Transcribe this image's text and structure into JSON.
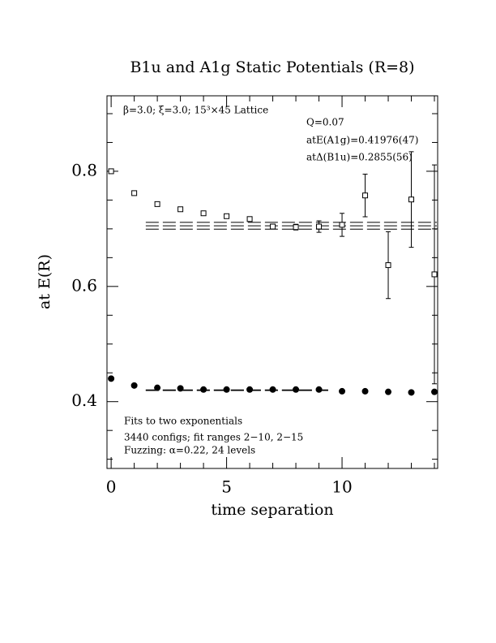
{
  "chart_data": {
    "type": "scatter",
    "title": "B1u and A1g Static Potentials (R=8)",
    "x_label": "time separation",
    "y_label": "at E(R)",
    "annotations": [
      "β=3.0; ξ=3.0; 15³×45 Lattice",
      "Q=0.07",
      "atE(A1g)=0.41976(47)",
      "atΔ(B1u)=0.2855(56)",
      "Fits to two exponentials",
      "3440 configs; fit ranges 2−10, 2−15",
      "Fuzzing: α=0.22, 24 levels"
    ],
    "xlim": [
      -0.18,
      14.14
    ],
    "ylim": [
      0.284,
      0.931
    ],
    "xticks": [
      0,
      5,
      10
    ],
    "yticks": [
      0.4,
      0.6,
      0.8
    ],
    "xminorticks": [
      1,
      2,
      3,
      4,
      6,
      7,
      8,
      9,
      11,
      12,
      13,
      14
    ],
    "yminorticks": [
      0.3,
      0.35,
      0.45,
      0.5,
      0.55,
      0.65,
      0.7,
      0.75,
      0.85,
      0.9
    ],
    "series": [
      {
        "marker": "open-square",
        "color": "#000000",
        "x": [
          0,
          1,
          2,
          3,
          4,
          5,
          6,
          7,
          8,
          9,
          10,
          11,
          12,
          13,
          14
        ],
        "values": [
          0.8,
          0.762,
          0.743,
          0.734,
          0.727,
          0.722,
          0.717,
          0.704,
          0.703,
          0.704,
          0.707,
          0.758,
          0.637,
          0.751,
          0.621
        ],
        "errors": [
          0.002,
          0.002,
          0.002,
          0.002,
          0.002,
          0.002,
          0.003,
          0.004,
          0.005,
          0.01,
          0.02,
          0.037,
          0.058,
          0.083,
          0.19
        ]
      },
      {
        "marker": "filled-circle",
        "color": "#000000",
        "x": [
          0,
          1,
          2,
          3,
          4,
          5,
          6,
          7,
          8,
          9,
          10,
          11,
          12,
          13,
          14
        ],
        "values": [
          0.44,
          0.428,
          0.424,
          0.423,
          0.421,
          0.421,
          0.421,
          0.421,
          0.421,
          0.421,
          0.418,
          0.418,
          0.417,
          0.416,
          0.417
        ]
      }
    ],
    "fits": [
      {
        "x": [
          1.5,
          14.1
        ],
        "values": [
          0.7112,
          0.7112
        ]
      },
      {
        "x": [
          1.5,
          14.1
        ],
        "values": [
          0.7053,
          0.7053
        ]
      },
      {
        "x": [
          1.5,
          14.1
        ],
        "values": [
          0.6994,
          0.6994
        ]
      },
      {
        "x": [
          1.5,
          9.4
        ],
        "values": [
          0.4203,
          0.4203
        ]
      },
      {
        "x": [
          1.5,
          9.4
        ],
        "values": [
          0.4198,
          0.4198
        ]
      },
      {
        "x": [
          1.5,
          9.4
        ],
        "values": [
          0.4193,
          0.4193
        ]
      }
    ]
  }
}
